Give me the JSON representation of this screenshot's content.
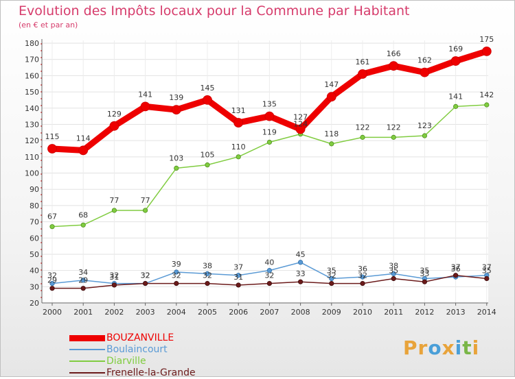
{
  "title": "Evolution des Impôts locaux pour la Commune par Habitant",
  "subtitle": "(en € et par an)",
  "brand": {
    "text": "Proxiti",
    "letters": [
      {
        "ch": "P",
        "color": "#e8a33a"
      },
      {
        "ch": "r",
        "color": "#e8a33a"
      },
      {
        "ch": "o",
        "color": "#4a9fd8"
      },
      {
        "ch": "x",
        "color": "#e8a33a"
      },
      {
        "ch": "i",
        "color": "#4a9fd8"
      },
      {
        "ch": "t",
        "color": "#7ab648"
      },
      {
        "ch": "i",
        "color": "#e8a33a"
      }
    ]
  },
  "chart_data": {
    "type": "line",
    "title": "Evolution des Impôts locaux pour la Commune par Habitant",
    "subtitle": "(en € et par an)",
    "xlabel": "",
    "ylabel": "",
    "x": [
      "2000",
      "2001",
      "2002",
      "2003",
      "2004",
      "2005",
      "2006",
      "2007",
      "2008",
      "2009",
      "2010",
      "2011",
      "2012",
      "2013",
      "2014"
    ],
    "ylim": [
      20,
      180
    ],
    "yticks": [
      20,
      30,
      40,
      50,
      60,
      70,
      80,
      90,
      100,
      110,
      120,
      130,
      140,
      150,
      160,
      170,
      180
    ],
    "grid": true,
    "legend_position": "bottom-left",
    "series": [
      {
        "name": "BOUZANVILLE",
        "color": "#ee0000",
        "values": [
          115,
          114,
          129,
          141,
          139,
          145,
          131,
          135,
          127,
          147,
          161,
          166,
          162,
          169,
          175
        ]
      },
      {
        "name": "Boulaincourt",
        "color": "#5a9ad5",
        "values": [
          32,
          34,
          32,
          32,
          39,
          38,
          37,
          40,
          45,
          35,
          36,
          38,
          35,
          36,
          37
        ]
      },
      {
        "name": "Diarville",
        "color": "#80cc40",
        "values": [
          67,
          68,
          77,
          77,
          103,
          105,
          110,
          119,
          124,
          118,
          122,
          122,
          123,
          141,
          142
        ]
      },
      {
        "name": "Frenelle-la-Grande",
        "color": "#6b1a1a",
        "values": [
          29,
          29,
          31,
          32,
          32,
          32,
          31,
          32,
          33,
          32,
          32,
          35,
          33,
          37,
          35
        ]
      }
    ],
    "point_labels": [
      {
        "series": "BOUZANVILLE",
        "labels": [
          "115",
          "114",
          "129",
          "141",
          "139",
          "145",
          "131",
          "135",
          "127",
          "147",
          "161",
          "166",
          "162",
          "169",
          "175"
        ]
      },
      {
        "series": "Boulaincourt",
        "labels": [
          "32",
          "34",
          "32",
          "32",
          "39",
          "38",
          "37",
          "40",
          "45",
          "35",
          "36",
          "38",
          "35",
          "36",
          "37"
        ]
      },
      {
        "series": "Diarville",
        "labels": [
          "67",
          "68",
          "77",
          "77",
          "103",
          "105",
          "110",
          "119",
          "124",
          "118",
          "122",
          "122",
          "123",
          "141",
          "142"
        ]
      },
      {
        "series": "Frenelle-la-Grande",
        "labels": [
          "29",
          "29",
          "31",
          "32",
          "32",
          "32",
          "31",
          "32",
          "33",
          "32",
          "32",
          "35",
          "33",
          "37",
          "35"
        ]
      }
    ]
  }
}
